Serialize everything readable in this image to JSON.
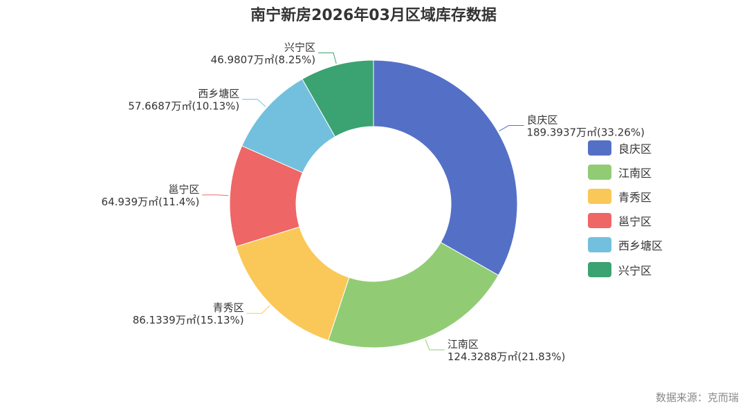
{
  "chart_data": {
    "type": "pie",
    "title": "南宁新房2026年03月区域库存数据",
    "unit": "万㎡",
    "categories": [
      "良庆区",
      "江南区",
      "青秀区",
      "邕宁区",
      "西乡塘区",
      "兴宁区"
    ],
    "values": [
      189.3937,
      124.3288,
      86.1339,
      64.939,
      57.6687,
      46.9807
    ],
    "percent_labels": [
      "33.26%",
      "21.83%",
      "15.13%",
      "11.4%",
      "10.13%",
      "8.25%"
    ],
    "value_labels": [
      "189.3937万㎡(33.26%)",
      "124.3288万㎡(21.83%)",
      "86.1339万㎡(15.13%)",
      "64.939万㎡(11.4%)",
      "57.6687万㎡(10.13%)",
      "46.9807万㎡(8.25%)"
    ],
    "colors": [
      "#5470c6",
      "#91cc75",
      "#fac858",
      "#ee6666",
      "#73c0de",
      "#3ba272"
    ],
    "legend_position": "right"
  },
  "source_text": "数据来源：克而瑞"
}
